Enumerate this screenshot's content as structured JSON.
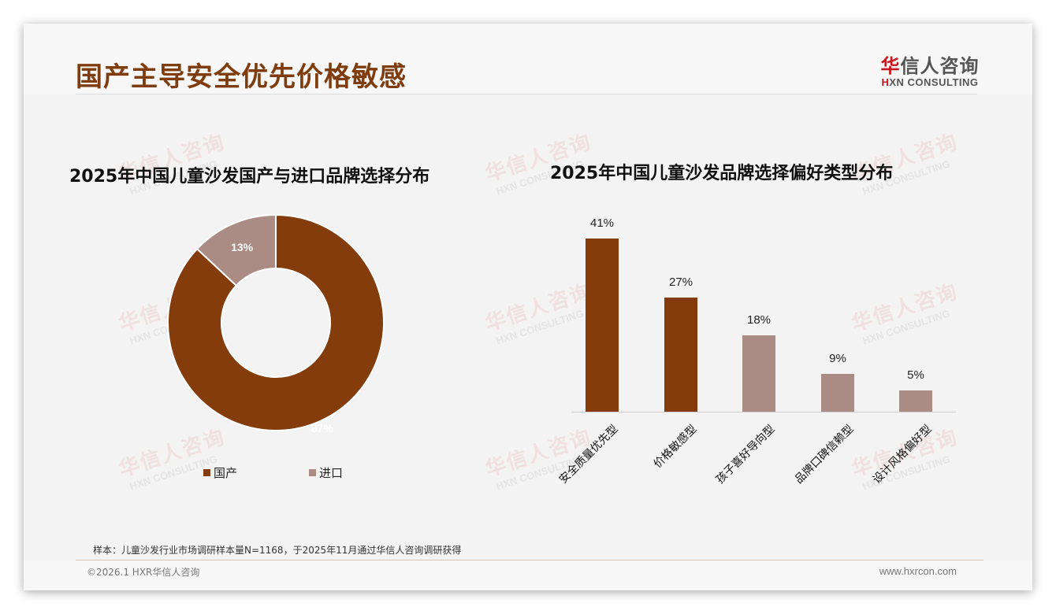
{
  "page": {
    "title": "国产主导安全优先价格敏感",
    "logo": {
      "cn_accent": "华",
      "cn_rest": "信人咨询",
      "en_accent": "H",
      "en_rest": "XN CONSULTING"
    },
    "watermark": {
      "cn": "华信人咨询",
      "en": "HXN CONSULTING"
    },
    "source_note": "样本：儿童沙发行业市场调研样本量N=1168，于2025年11月通过华信人咨询调研获得",
    "copyright": "©2026.1 HXR华信人咨询",
    "website": "www.hxrcon.com"
  },
  "colors": {
    "primary": "#843c0c",
    "secondary": "#ab8c84",
    "title": "#7f3c0e",
    "logo_red": "#c8171e"
  },
  "chart_data": [
    {
      "type": "pie",
      "variant": "donut",
      "title": "2025年中国儿童沙发国产与进口品牌选择分布",
      "categories": [
        "国产",
        "进口"
      ],
      "values": [
        87,
        13
      ],
      "labels": [
        "87%",
        "13%"
      ],
      "colors": [
        "#843c0c",
        "#ab8c84"
      ],
      "legend_position": "bottom"
    },
    {
      "type": "bar",
      "title": "2025年中国儿童沙发品牌选择偏好类型分布",
      "categories": [
        "安全质量优先型",
        "价格敏感型",
        "孩子喜好导向型",
        "品牌口碑信赖型",
        "设计风格偏好型"
      ],
      "values": [
        41,
        27,
        18,
        9,
        5
      ],
      "labels": [
        "41%",
        "27%",
        "18%",
        "9%",
        "5%"
      ],
      "colors": [
        "#843c0c",
        "#843c0c",
        "#ab8c84",
        "#ab8c84",
        "#ab8c84"
      ],
      "xlabel": "",
      "ylabel": "",
      "ylim": [
        0,
        45
      ],
      "grid": false,
      "legend": false
    }
  ]
}
